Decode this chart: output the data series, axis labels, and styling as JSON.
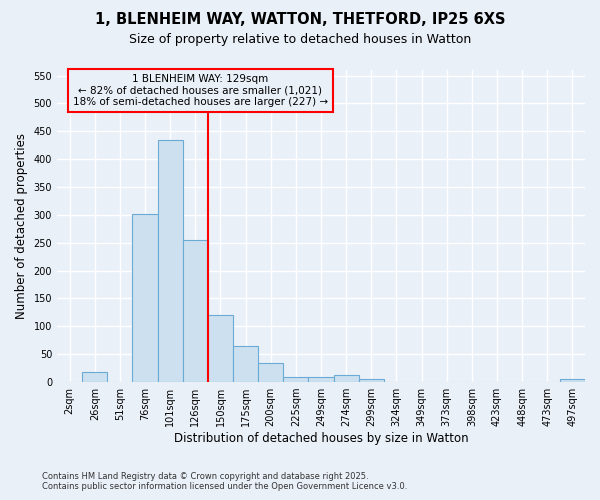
{
  "title_line1": "1, BLENHEIM WAY, WATTON, THETFORD, IP25 6XS",
  "title_line2": "Size of property relative to detached houses in Watton",
  "xlabel": "Distribution of detached houses by size in Watton",
  "ylabel": "Number of detached properties",
  "bar_color": "#cce0f0",
  "bar_edge_color": "#6aaad4",
  "categories": [
    "2sqm",
    "26sqm",
    "51sqm",
    "76sqm",
    "101sqm",
    "126sqm",
    "150sqm",
    "175sqm",
    "200sqm",
    "225sqm",
    "249sqm",
    "274sqm",
    "299sqm",
    "324sqm",
    "349sqm",
    "373sqm",
    "398sqm",
    "423sqm",
    "448sqm",
    "473sqm",
    "497sqm"
  ],
  "values": [
    0,
    18,
    0,
    302,
    435,
    255,
    120,
    65,
    35,
    10,
    10,
    12,
    5,
    0,
    0,
    0,
    0,
    0,
    0,
    0,
    5
  ],
  "redline_index": 5,
  "annotation_line1": "1 BLENHEIM WAY: 129sqm",
  "annotation_line2": "← 82% of detached houses are smaller (1,021)",
  "annotation_line3": "18% of semi-detached houses are larger (227) →",
  "ylim": [
    0,
    560
  ],
  "yticks": [
    0,
    50,
    100,
    150,
    200,
    250,
    300,
    350,
    400,
    450,
    500,
    550
  ],
  "footnote1": "Contains HM Land Registry data © Crown copyright and database right 2025.",
  "footnote2": "Contains public sector information licensed under the Open Government Licence v3.0.",
  "background_color": "#eaf0f8",
  "grid_color": "#ffffff",
  "title_fontsize": 10.5,
  "subtitle_fontsize": 9,
  "tick_fontsize": 7,
  "label_fontsize": 8.5,
  "annotation_fontsize": 7.5,
  "footnote_fontsize": 6
}
